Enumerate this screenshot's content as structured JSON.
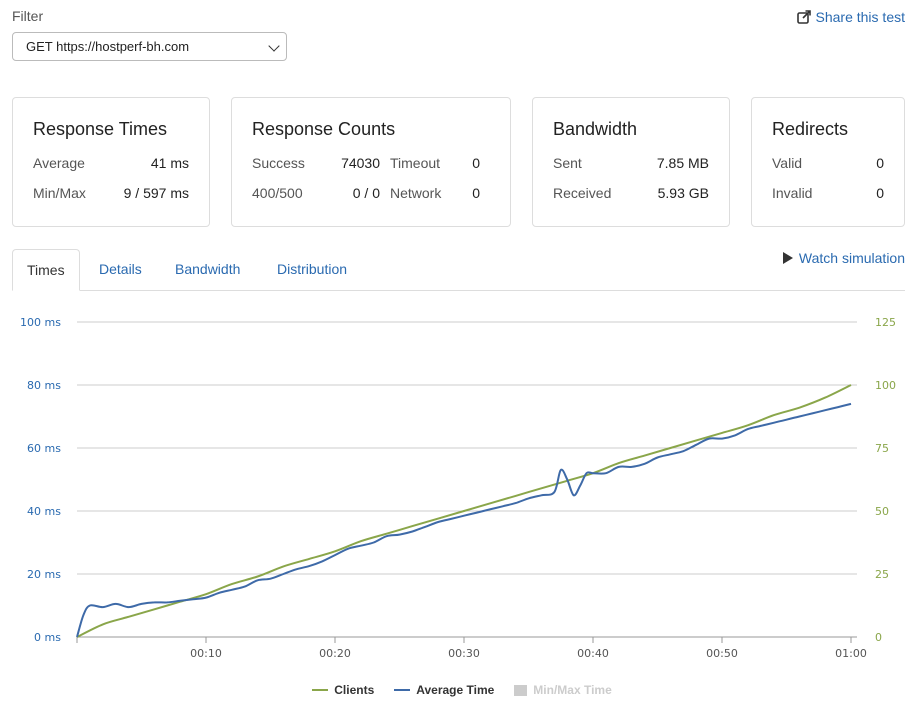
{
  "filter": {
    "label": "Filter",
    "selected": "GET https://hostperf-bh.com"
  },
  "share_label": "Share this test",
  "cards": {
    "response_times": {
      "title": "Response Times",
      "average_label": "Average",
      "average": "41 ms",
      "minmax_label": "Min/Max",
      "minmax": "9 / 597 ms"
    },
    "response_counts": {
      "title": "Response Counts",
      "success_label": "Success",
      "success": "74030",
      "timeout_label": "Timeout",
      "timeout": "0",
      "err_label": "400/500",
      "err": "0 / 0",
      "network_label": "Network",
      "network": "0"
    },
    "bandwidth": {
      "title": "Bandwidth",
      "sent_label": "Sent",
      "sent": "7.85 MB",
      "received_label": "Received",
      "received": "5.93 GB"
    },
    "redirects": {
      "title": "Redirects",
      "valid_label": "Valid",
      "valid": "0",
      "invalid_label": "Invalid",
      "invalid": "0"
    }
  },
  "tabs": [
    "Times",
    "Details",
    "Bandwidth",
    "Distribution"
  ],
  "watch_label": "Watch simulation",
  "colors": {
    "clients": "#8aa64a",
    "avg": "#3e6aa8",
    "link": "#2a6ab0"
  },
  "chart_data": {
    "type": "line",
    "x_ticks": [
      "00:10",
      "00:20",
      "00:30",
      "00:40",
      "00:50",
      "01:00"
    ],
    "y_left_ticks": [
      "0 ms",
      "20 ms",
      "40 ms",
      "60 ms",
      "80 ms",
      "100 ms"
    ],
    "y_right_ticks": [
      "0",
      "25",
      "50",
      "75",
      "100",
      "125"
    ],
    "ylim_left": [
      0,
      100
    ],
    "ylim_right": [
      0,
      125
    ],
    "xlim": [
      0,
      60
    ],
    "grid": true,
    "legend_placement": "bottom",
    "series": [
      {
        "name": "Clients",
        "axis": "right",
        "x": [
          0,
          2,
          4,
          6,
          8,
          10,
          12,
          14,
          16,
          18,
          20,
          22,
          24,
          26,
          28,
          30,
          32,
          34,
          36,
          38,
          40,
          42,
          44,
          46,
          48,
          50,
          52,
          54,
          56,
          58,
          60
        ],
        "values": [
          0,
          5,
          8,
          11,
          14,
          17,
          21,
          24,
          28,
          31,
          34,
          38,
          41,
          44,
          47,
          50,
          53,
          56,
          59,
          62,
          65,
          69,
          72,
          75,
          78,
          81,
          84,
          88,
          91,
          95,
          100
        ]
      },
      {
        "name": "Average Time",
        "axis": "left",
        "x": [
          0,
          0.5,
          1,
          2,
          3,
          4,
          5,
          6,
          7,
          8,
          9,
          10,
          11,
          12,
          13,
          14,
          15,
          16,
          17,
          18,
          19,
          20,
          21,
          22,
          23,
          24,
          25,
          26,
          27,
          28,
          29,
          30,
          31,
          32,
          33,
          34,
          35,
          36,
          37,
          37.5,
          38,
          38.5,
          39,
          39.5,
          40,
          41,
          42,
          43,
          44,
          45,
          46,
          47,
          48,
          49,
          50,
          51,
          52,
          53,
          54,
          55,
          56,
          57,
          58,
          59,
          60
        ],
        "values": [
          0,
          7,
          10,
          9.5,
          10.5,
          9.5,
          10.5,
          11,
          11,
          11.5,
          12,
          12.5,
          14,
          15,
          16,
          18,
          18.5,
          20,
          21.5,
          22.5,
          24,
          26,
          28,
          29,
          30,
          32,
          32.5,
          33.5,
          35,
          36.5,
          37.5,
          38.5,
          39.5,
          40.5,
          41.5,
          42.5,
          44,
          45,
          46,
          53,
          50,
          45,
          48,
          52,
          52,
          52,
          54,
          54,
          55,
          57,
          58,
          59,
          61,
          63,
          63,
          64,
          66,
          67,
          68,
          69,
          70,
          71,
          72,
          73,
          74
        ]
      },
      {
        "name": "Min/Max Time",
        "hidden": true
      }
    ]
  }
}
